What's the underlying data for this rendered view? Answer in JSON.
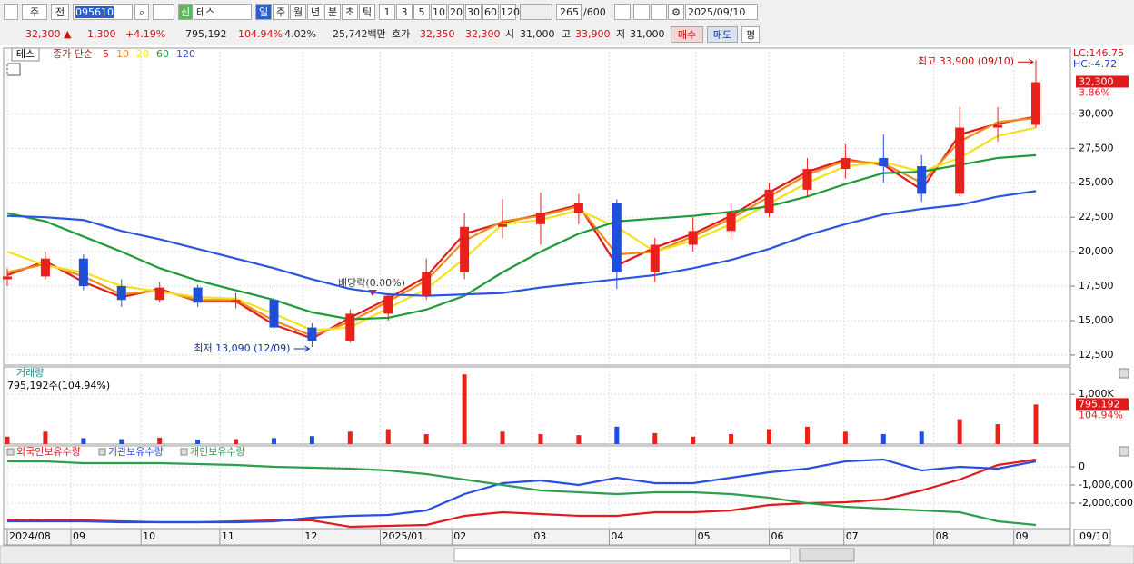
{
  "toolbar": {
    "market": "주",
    "prev": "전",
    "code": "095610",
    "credit": "신",
    "name": "테스",
    "periods": [
      "일",
      "주",
      "월",
      "년",
      "분",
      "초",
      "틱"
    ],
    "intervals": [
      "1",
      "3",
      "5",
      "10",
      "20",
      "30",
      "60",
      "120"
    ],
    "count": "265",
    "max": "/600",
    "date": "2025/09/10"
  },
  "info_bar": {
    "price": "32,300 ▲",
    "change": "1,300",
    "rate": "+4.19%",
    "volume": "795,192",
    "volume_ratio": "104.94%",
    "turnover": "4.02%",
    "amount": "25,742백만",
    "quote_label": "호가",
    "ask": "32,350",
    "bid": "32,300",
    "open_label": "시",
    "open": "31,000",
    "high_label": "고",
    "high": "33,900",
    "low_label": "저",
    "low": "31,000",
    "buy": "매수",
    "sell": "매도",
    "avg": "평"
  },
  "chart_data": [
    {
      "type": "candlestick",
      "legend_name": "테스",
      "legend_label": "종가 단순",
      "up_color": "#e8211b",
      "down_color": "#1f4fd8",
      "open": [
        18000,
        18200,
        19500,
        17500,
        16500,
        17400,
        16300,
        16500,
        14500,
        13500,
        15500,
        16800,
        18500,
        21800,
        22000,
        22800,
        23500,
        18500,
        20500,
        21500,
        22800,
        24500,
        26000,
        26800,
        26200,
        24200,
        29000,
        29200
      ],
      "high": [
        18800,
        20000,
        19800,
        18000,
        17800,
        17600,
        17000,
        17600,
        14800,
        15800,
        17000,
        19500,
        22800,
        23800,
        24300,
        24200,
        23800,
        21000,
        22500,
        23500,
        25000,
        26800,
        27800,
        28500,
        27000,
        30500,
        30500,
        33900
      ],
      "low": [
        17500,
        18000,
        17200,
        16000,
        16300,
        16000,
        15900,
        14300,
        13090,
        13400,
        15000,
        16500,
        18000,
        21000,
        20500,
        22000,
        17300,
        17800,
        20000,
        21000,
        22500,
        24000,
        25300,
        25000,
        23600,
        24000,
        28000,
        29000
      ],
      "close": [
        18200,
        19500,
        17500,
        16500,
        17400,
        16300,
        16500,
        14500,
        13500,
        15500,
        16800,
        18500,
        21800,
        22000,
        22800,
        23500,
        18500,
        20500,
        21500,
        22800,
        24500,
        26000,
        26800,
        26200,
        24200,
        29000,
        29200,
        32300
      ],
      "series": [
        {
          "name": "5",
          "color": "#e01b1b",
          "values": [
            18300,
            19300,
            17800,
            16700,
            17300,
            16400,
            16400,
            14700,
            13700,
            15200,
            16600,
            18200,
            21300,
            22100,
            22700,
            23400,
            19000,
            20300,
            21300,
            22600,
            24300,
            25800,
            26700,
            26300,
            24500,
            28500,
            29300,
            29800
          ]
        },
        {
          "name": "10",
          "color": "#f08a1c",
          "values": [
            18500,
            19100,
            18200,
            16900,
            17200,
            16500,
            16500,
            15000,
            13900,
            14900,
            16400,
            17900,
            20800,
            22200,
            22600,
            23300,
            19800,
            20000,
            21100,
            22400,
            24000,
            25600,
            26600,
            26400,
            25000,
            28000,
            29400,
            29700
          ]
        },
        {
          "name": "20",
          "color": "#f2e21c",
          "values": [
            20000,
            19000,
            18500,
            17500,
            17100,
            16700,
            16600,
            15500,
            14300,
            14500,
            15900,
            17300,
            19500,
            22000,
            22300,
            23000,
            21800,
            20000,
            20800,
            22000,
            23500,
            25000,
            26200,
            26500,
            25800,
            26800,
            28400,
            29000
          ]
        },
        {
          "name": "60",
          "color": "#1f9a3a",
          "values": [
            22800,
            22200,
            21100,
            20000,
            18800,
            17900,
            17200,
            16500,
            15600,
            15100,
            15200,
            15800,
            16800,
            18500,
            20000,
            21300,
            22200,
            22400,
            22600,
            22900,
            23300,
            24000,
            24900,
            25700,
            25800,
            26300,
            26800,
            27000
          ]
        },
        {
          "name": "120",
          "color": "#2b55e0",
          "values": [
            22600,
            22500,
            22300,
            21500,
            20900,
            20200,
            19500,
            18800,
            18000,
            17300,
            16900,
            16800,
            16900,
            17000,
            17400,
            17700,
            18000,
            18300,
            18800,
            19400,
            20200,
            21200,
            22000,
            22700,
            23100,
            23400,
            24000,
            24400
          ]
        }
      ],
      "ylim": [
        11770,
        34770
      ],
      "yticks": [
        {
          "value": 12500,
          "label": "12,500"
        },
        {
          "value": 15000,
          "label": "15,000"
        },
        {
          "value": 17500,
          "label": "17,500"
        },
        {
          "value": 20000,
          "label": "20,000"
        },
        {
          "value": 22500,
          "label": "22,500"
        },
        {
          "value": 25000,
          "label": "25,000"
        },
        {
          "value": 27500,
          "label": "27,500"
        },
        {
          "value": 30000,
          "label": "30,000"
        }
      ],
      "lc": "LC:146.75",
      "hc": "HC:-4.72",
      "last_label": "32,300",
      "last_rate": "3.86%",
      "high_note": "최고 33,900 (09/10)",
      "low_note": "최저 13,090 (12/09)",
      "dividend_note": "배당락(0.00%)"
    },
    {
      "type": "bar",
      "title": "거래량",
      "subtitle": "795,192주(104.94%)",
      "values": [
        150000,
        250000,
        120000,
        100000,
        130000,
        90000,
        100000,
        120000,
        160000,
        250000,
        300000,
        200000,
        1400000,
        250000,
        200000,
        180000,
        350000,
        220000,
        150000,
        200000,
        300000,
        350000,
        250000,
        200000,
        250000,
        500000,
        400000,
        795192
      ],
      "ylim": [
        0,
        1550000
      ],
      "yticks": [
        {
          "value": 1000000,
          "label": "1,000K"
        }
      ],
      "last_label": "795,192",
      "last_rate": "104.94%"
    },
    {
      "type": "line",
      "series": [
        {
          "name": "외국인보유수량",
          "color": "#e01b1b",
          "values": [
            -2900000,
            -2950000,
            -2950000,
            -3000000,
            -3050000,
            -3050000,
            -3000000,
            -2950000,
            -2950000,
            -3300000,
            -3250000,
            -3200000,
            -2700000,
            -2500000,
            -2600000,
            -2700000,
            -2700000,
            -2500000,
            -2500000,
            -2400000,
            -2100000,
            -2000000,
            -1950000,
            -1800000,
            -1300000,
            -700000,
            100000,
            400000
          ]
        },
        {
          "name": "기관보유수량",
          "color": "#2a4fe0",
          "values": [
            -3000000,
            -3000000,
            -3000000,
            -3050000,
            -3050000,
            -3050000,
            -3050000,
            -3000000,
            -2800000,
            -2700000,
            -2650000,
            -2400000,
            -1500000,
            -900000,
            -750000,
            -1000000,
            -600000,
            -900000,
            -900000,
            -600000,
            -300000,
            -100000,
            300000,
            400000,
            -200000,
            0,
            -100000,
            300000
          ]
        },
        {
          "name": "개인보유수량",
          "color": "#2e9e4e",
          "values": [
            300000,
            300000,
            200000,
            200000,
            200000,
            150000,
            100000,
            0,
            -50000,
            -100000,
            -200000,
            -400000,
            -700000,
            -1000000,
            -1300000,
            -1400000,
            -1500000,
            -1400000,
            -1400000,
            -1500000,
            -1700000,
            -2000000,
            -2200000,
            -2300000,
            -2400000,
            -2500000,
            -3000000,
            -3200000
          ]
        }
      ],
      "ylim": [
        -3400000,
        1150000
      ],
      "yticks": [
        0,
        {
          "value": -1000000,
          "label": "-1,000,000"
        },
        {
          "value": -2000000,
          "label": "-2,000,000"
        }
      ],
      "xlim": [
        0,
        27
      ],
      "xticks": [
        {
          "value": 0,
          "label": "2024/08"
        },
        {
          "value": 1.67,
          "label": "09"
        },
        {
          "value": 3.51,
          "label": "10"
        },
        {
          "value": 5.58,
          "label": "11"
        },
        {
          "value": 7.76,
          "label": "12"
        },
        {
          "value": 9.79,
          "label": "2025/01"
        },
        {
          "value": 11.67,
          "label": "02"
        },
        {
          "value": 13.77,
          "label": "03"
        },
        {
          "value": 15.8,
          "label": "04"
        },
        {
          "value": 18.07,
          "label": "05"
        },
        {
          "value": 20,
          "label": "06"
        },
        {
          "value": 21.96,
          "label": "07"
        },
        {
          "value": 24.32,
          "label": "08"
        },
        {
          "value": 26.42,
          "label": "09"
        }
      ],
      "x_last_label": "09/10"
    }
  ]
}
